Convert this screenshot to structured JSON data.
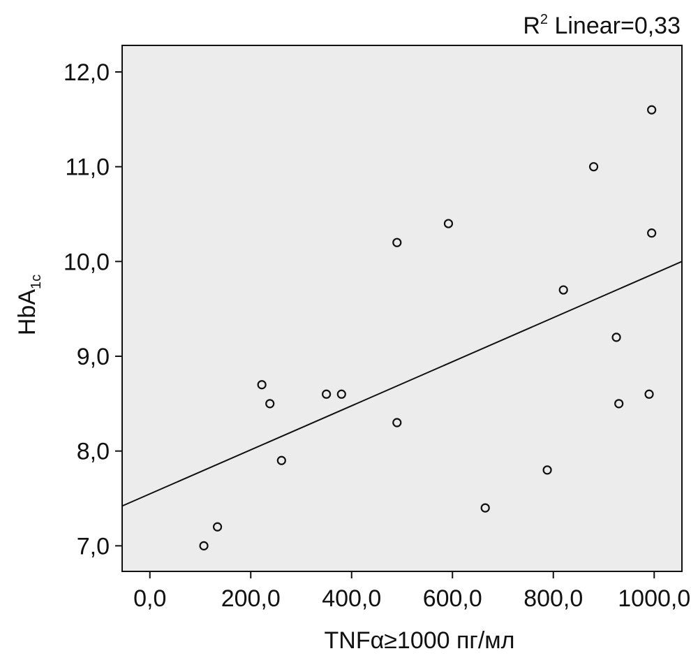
{
  "chart_data": {
    "type": "scatter",
    "title": "",
    "annotation": {
      "prefix": "R",
      "sup": "2",
      "text": " Linear=0,33"
    },
    "xlabel": "TNFα≥1000 пг/мл",
    "ylabel": {
      "main": "HbA",
      "sub": "1c"
    },
    "xlim": [
      -55,
      1055
    ],
    "ylim": [
      6.73,
      12.28
    ],
    "x_ticks": [
      {
        "value": 0,
        "label": "0,0"
      },
      {
        "value": 200,
        "label": "200,0"
      },
      {
        "value": 400,
        "label": "400,0"
      },
      {
        "value": 600,
        "label": "600,0"
      },
      {
        "value": 800,
        "label": "800,0"
      },
      {
        "value": 1000,
        "label": "1000,0"
      }
    ],
    "y_ticks": [
      {
        "value": 7.0,
        "label": "7,0"
      },
      {
        "value": 8.0,
        "label": "8,0"
      },
      {
        "value": 9.0,
        "label": "9,0"
      },
      {
        "value": 10.0,
        "label": "10,0"
      },
      {
        "value": 11.0,
        "label": "11,0"
      },
      {
        "value": 12.0,
        "label": "12,0"
      }
    ],
    "grid": false,
    "points": [
      {
        "x": 107,
        "y": 7.0
      },
      {
        "x": 134,
        "y": 7.2
      },
      {
        "x": 222,
        "y": 8.7
      },
      {
        "x": 238,
        "y": 8.5
      },
      {
        "x": 261,
        "y": 7.9
      },
      {
        "x": 350,
        "y": 8.6
      },
      {
        "x": 380,
        "y": 8.6
      },
      {
        "x": 490,
        "y": 8.3
      },
      {
        "x": 490,
        "y": 10.2
      },
      {
        "x": 592,
        "y": 10.4
      },
      {
        "x": 665,
        "y": 7.4
      },
      {
        "x": 788,
        "y": 7.8
      },
      {
        "x": 820,
        "y": 9.7
      },
      {
        "x": 880,
        "y": 11.0
      },
      {
        "x": 925,
        "y": 9.2
      },
      {
        "x": 930,
        "y": 8.5
      },
      {
        "x": 990,
        "y": 8.6
      },
      {
        "x": 995,
        "y": 10.3
      },
      {
        "x": 995,
        "y": 11.6
      }
    ],
    "fit_line": {
      "x": [
        -55,
        1055
      ],
      "y": [
        7.42,
        10.0
      ]
    },
    "colors": {
      "plot_bg": "#ececec",
      "marker_stroke": "#111111",
      "line": "#111111",
      "frame": "#111111"
    }
  }
}
